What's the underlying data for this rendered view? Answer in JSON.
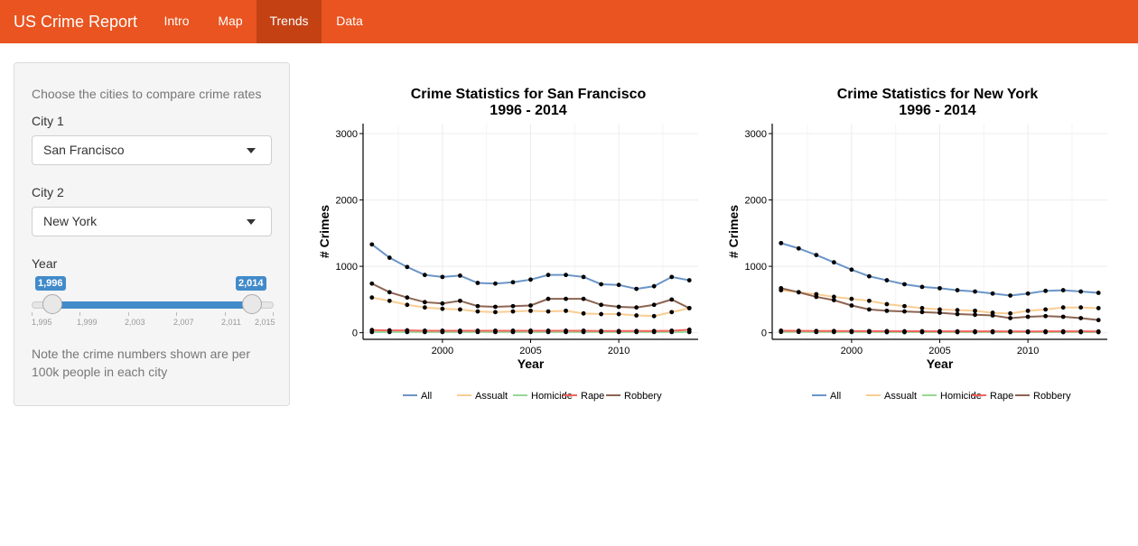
{
  "navbar": {
    "brand": "US Crime Report",
    "tabs": [
      {
        "label": "Intro",
        "active": false
      },
      {
        "label": "Map",
        "active": false
      },
      {
        "label": "Trends",
        "active": true
      },
      {
        "label": "Data",
        "active": false
      }
    ],
    "color": "#e95420",
    "active_color": "#c34113"
  },
  "sidebar": {
    "help_text": "Choose the cities to compare crime rates",
    "city1": {
      "label": "City 1",
      "value": "San Francisco"
    },
    "city2": {
      "label": "City 2",
      "value": "New York"
    },
    "year": {
      "label": "Year",
      "from": "1,996",
      "to": "2,014",
      "from_value": 1996,
      "to_value": 2014,
      "min": 1995,
      "max": 2015,
      "ticks": [
        "1,995",
        "1,999",
        "2,003",
        "2,007",
        "2,011",
        "2,015"
      ]
    },
    "note": "Note the crime numbers shown are per 100k people in each city"
  },
  "chart_data": [
    {
      "type": "line",
      "title": "Crime Statistics for San Francisco",
      "subtitle": "1996 - 2014",
      "xlabel": "Year",
      "ylabel": "# Crimes",
      "xlim": [
        1995.5,
        2014.5
      ],
      "ylim": [
        -100,
        3150
      ],
      "xticks": [
        "2000",
        "2005",
        "2010"
      ],
      "yticks": [
        "0",
        "1000",
        "2000",
        "3000"
      ],
      "grid": true,
      "legend": "bottom",
      "x": [
        1996,
        1997,
        1998,
        1999,
        2000,
        2001,
        2002,
        2003,
        2004,
        2005,
        2006,
        2007,
        2008,
        2009,
        2010,
        2011,
        2012,
        2013,
        2014
      ],
      "series": [
        {
          "name": "All",
          "color": "#6b95c7",
          "values": [
            1330,
            1130,
            990,
            870,
            840,
            860,
            750,
            740,
            760,
            800,
            870,
            870,
            840,
            730,
            720,
            660,
            700,
            840,
            790
          ]
        },
        {
          "name": "Assualt",
          "color": "#f9cd93",
          "values": [
            530,
            480,
            420,
            380,
            360,
            350,
            320,
            310,
            320,
            330,
            320,
            330,
            290,
            280,
            280,
            260,
            250,
            310,
            370
          ]
        },
        {
          "name": "Homicide",
          "color": "#97d795",
          "values": [
            10,
            10,
            10,
            10,
            10,
            10,
            10,
            10,
            10,
            10,
            10,
            10,
            10,
            10,
            10,
            10,
            10,
            10,
            10
          ]
        },
        {
          "name": "Rape",
          "color": "#f2645f",
          "values": [
            40,
            35,
            35,
            30,
            30,
            30,
            30,
            30,
            30,
            30,
            30,
            30,
            30,
            25,
            25,
            25,
            25,
            30,
            45
          ]
        },
        {
          "name": "Robbery",
          "color": "#8c6452",
          "values": [
            740,
            610,
            530,
            460,
            440,
            480,
            400,
            390,
            400,
            410,
            510,
            510,
            510,
            420,
            390,
            380,
            420,
            500,
            370
          ]
        }
      ]
    },
    {
      "type": "line",
      "title": "Crime Statistics for New York",
      "subtitle": "1996 - 2014",
      "xlabel": "Year",
      "ylabel": "# Crimes",
      "xlim": [
        1995.5,
        2014.5
      ],
      "ylim": [
        -100,
        3150
      ],
      "xticks": [
        "2000",
        "2005",
        "2010"
      ],
      "yticks": [
        "0",
        "1000",
        "2000",
        "3000"
      ],
      "grid": true,
      "legend": "bottom",
      "x": [
        1996,
        1997,
        1998,
        1999,
        2000,
        2001,
        2002,
        2003,
        2004,
        2005,
        2006,
        2007,
        2008,
        2009,
        2010,
        2011,
        2012,
        2013,
        2014
      ],
      "series": [
        {
          "name": "All",
          "color": "#6b95c7",
          "values": [
            1350,
            1270,
            1170,
            1060,
            950,
            850,
            790,
            730,
            690,
            670,
            640,
            620,
            590,
            560,
            590,
            630,
            640,
            620,
            600
          ]
        },
        {
          "name": "Assualt",
          "color": "#f9cd93",
          "values": [
            640,
            610,
            580,
            540,
            510,
            480,
            430,
            400,
            370,
            350,
            340,
            330,
            300,
            290,
            330,
            350,
            380,
            380,
            370
          ]
        },
        {
          "name": "Homicide",
          "color": "#97d795",
          "values": [
            12,
            12,
            10,
            10,
            10,
            10,
            8,
            8,
            8,
            8,
            8,
            8,
            8,
            8,
            8,
            8,
            8,
            8,
            8
          ]
        },
        {
          "name": "Rape",
          "color": "#f2645f",
          "values": [
            30,
            28,
            26,
            25,
            24,
            24,
            23,
            22,
            22,
            21,
            20,
            20,
            20,
            19,
            19,
            20,
            20,
            20,
            19
          ]
        },
        {
          "name": "Robbery",
          "color": "#8c6452",
          "values": [
            670,
            610,
            540,
            490,
            410,
            350,
            330,
            320,
            310,
            300,
            280,
            270,
            260,
            220,
            240,
            250,
            240,
            220,
            190
          ]
        }
      ]
    }
  ]
}
